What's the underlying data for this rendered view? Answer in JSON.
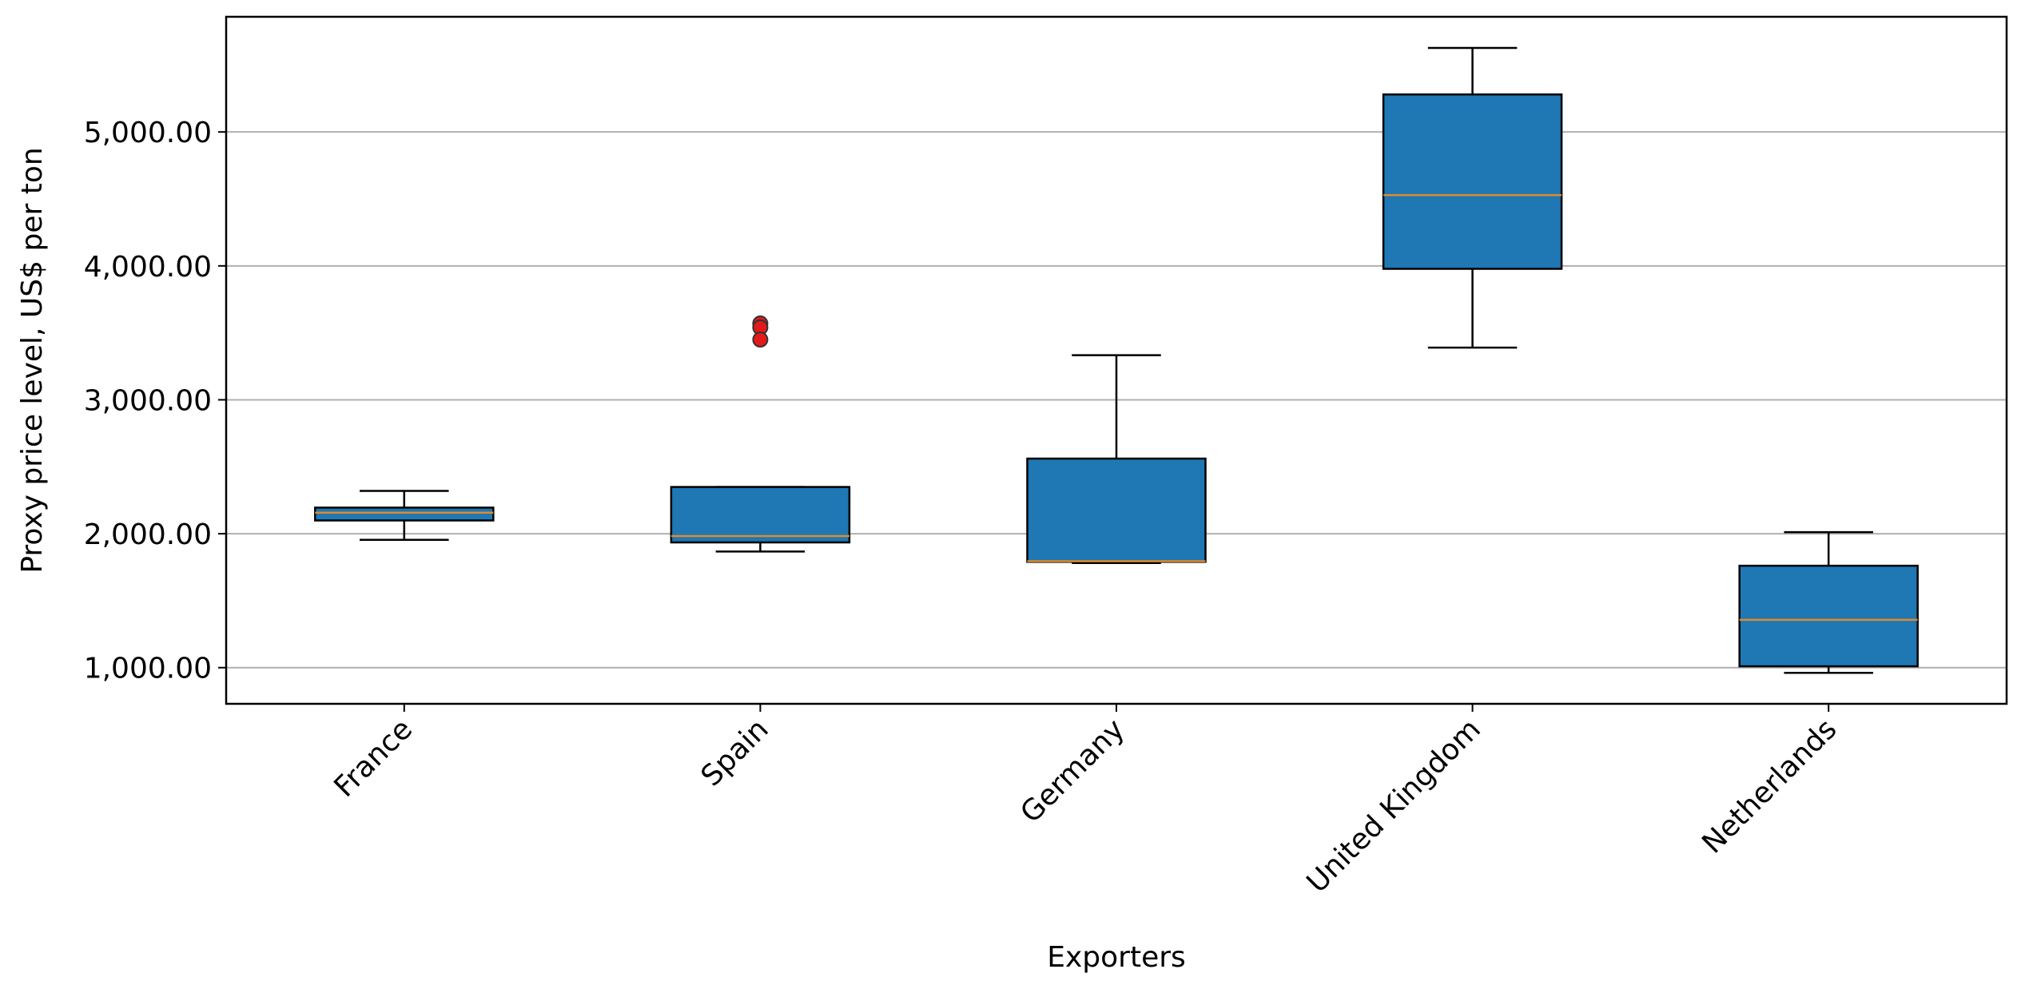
{
  "chart_data": {
    "type": "box",
    "x_label": "Exporters",
    "y_label": "Proxy price level, US$ per ton",
    "categories": [
      "France",
      "Spain",
      "Germany",
      "United Kingdom",
      "Netherlands"
    ],
    "boxes": [
      {
        "whislo": 1954,
        "q1": 2099,
        "med": 2157,
        "q3": 2195,
        "whishi": 2320,
        "fliers": []
      },
      {
        "whislo": 1867,
        "q1": 1935,
        "med": 1983,
        "q3": 2349,
        "whishi": 2349,
        "fliers": [
          3570,
          3540,
          3450
        ]
      },
      {
        "whislo": 1781,
        "q1": 1790,
        "med": 1795,
        "q3": 2561,
        "whishi": 3333,
        "fliers": []
      },
      {
        "whislo": 3390,
        "q1": 3978,
        "med": 4528,
        "q3": 5280,
        "whishi": 5627,
        "fliers": []
      },
      {
        "whislo": 961,
        "q1": 1010,
        "med": 1357,
        "q3": 1761,
        "whishi": 2012,
        "fliers": []
      }
    ],
    "color": "#1f77b4",
    "median_color": "#e08a2c",
    "flier_color": "#e31a1c",
    "ylim": [
      730,
      5860
    ],
    "yticks": [
      {
        "value": 1000,
        "label": "1,000.00"
      },
      {
        "value": 2000,
        "label": "2,000.00"
      },
      {
        "value": 3000,
        "label": "3,000.00"
      },
      {
        "value": 4000,
        "label": "4,000.00"
      },
      {
        "value": 5000,
        "label": "5,000.00"
      }
    ],
    "grid": true
  }
}
